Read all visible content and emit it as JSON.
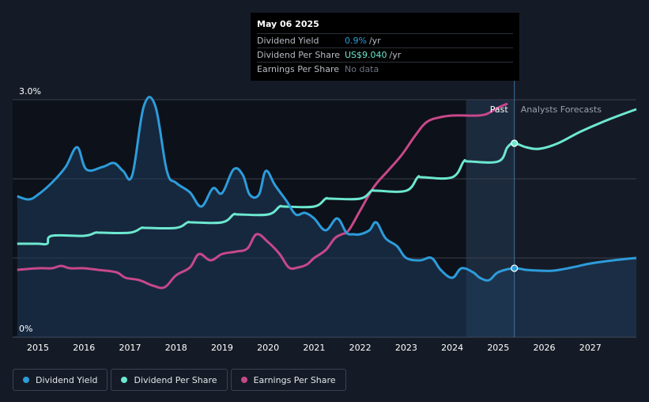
{
  "tooltip": {
    "date": "May 06 2025",
    "rows": [
      {
        "label": "Dividend Yield",
        "value": "0.9%",
        "unit": "/yr",
        "color": "#2d9cdb"
      },
      {
        "label": "Dividend Per Share",
        "value": "US$9.040",
        "unit": "/yr",
        "color": "#6de8d0"
      },
      {
        "label": "Earnings Per Share",
        "value": "No data",
        "unit": "",
        "color": "#6b7280"
      }
    ]
  },
  "legend": [
    {
      "label": "Dividend Yield",
      "color": "#2d9cdb"
    },
    {
      "label": "Dividend Per Share",
      "color": "#6de8d0"
    },
    {
      "label": "Earnings Per Share",
      "color": "#c7488a"
    }
  ],
  "chart_data": {
    "type": "line",
    "x_range": [
      2014.45,
      2028.0
    ],
    "y_range": [
      0,
      3.0
    ],
    "y_tick_labels": [
      {
        "value": 3.0,
        "label": "3.0%"
      },
      {
        "value": 0,
        "label": "0%"
      }
    ],
    "x_ticks": [
      2015,
      2016,
      2017,
      2018,
      2019,
      2020,
      2021,
      2022,
      2023,
      2024,
      2025,
      2026,
      2027
    ],
    "past_label": "Past",
    "forecast_label": "Analysts Forecasts",
    "forecast_band": [
      2024.3,
      2025.35
    ],
    "today": 2025.35,
    "colors": {
      "yield": "#2d9cdb",
      "dps": "#6de8d0",
      "eps": "#c7488a",
      "grid": "#3a3f4a",
      "background": "#151b26"
    },
    "series": [
      {
        "name": "Dividend Yield",
        "key": "yield",
        "x": [
          2014.55,
          2014.8,
          2015.0,
          2015.3,
          2015.6,
          2015.85,
          2016.05,
          2016.4,
          2016.65,
          2016.85,
          2017.05,
          2017.3,
          2017.55,
          2017.8,
          2018.0,
          2018.3,
          2018.55,
          2018.8,
          2019.0,
          2019.25,
          2019.45,
          2019.6,
          2019.8,
          2019.95,
          2020.15,
          2020.4,
          2020.6,
          2020.8,
          2021.0,
          2021.25,
          2021.5,
          2021.7,
          2021.85,
          2022.0,
          2022.2,
          2022.35,
          2022.55,
          2022.8,
          2023.0,
          2023.3,
          2023.55,
          2023.75,
          2024.0,
          2024.2,
          2024.45,
          2024.6,
          2024.8,
          2025.0,
          2025.35,
          2025.6,
          2025.9,
          2026.2,
          2026.6,
          2027.0,
          2027.5,
          2028.0
        ],
        "values": [
          1.78,
          1.74,
          1.8,
          1.95,
          2.15,
          2.4,
          2.12,
          2.15,
          2.2,
          2.1,
          2.05,
          2.92,
          2.92,
          2.1,
          1.95,
          1.83,
          1.65,
          1.88,
          1.82,
          2.12,
          2.05,
          1.8,
          1.8,
          2.1,
          1.92,
          1.72,
          1.55,
          1.57,
          1.5,
          1.35,
          1.5,
          1.32,
          1.3,
          1.3,
          1.35,
          1.45,
          1.25,
          1.15,
          1.0,
          0.97,
          1.0,
          0.85,
          0.75,
          0.87,
          0.82,
          0.75,
          0.72,
          0.82,
          0.87,
          0.85,
          0.84,
          0.84,
          0.88,
          0.93,
          0.97,
          1.0
        ]
      },
      {
        "name": "Dividend Per Share",
        "key": "dps",
        "x": [
          2014.55,
          2015.0,
          2015.2,
          2015.3,
          2016.0,
          2016.25,
          2016.35,
          2017.0,
          2017.25,
          2017.35,
          2018.0,
          2018.25,
          2018.35,
          2019.0,
          2019.25,
          2019.35,
          2020.0,
          2020.25,
          2020.35,
          2021.0,
          2021.25,
          2021.35,
          2022.0,
          2022.25,
          2022.35,
          2023.0,
          2023.25,
          2023.35,
          2024.0,
          2024.25,
          2024.35,
          2025.0,
          2025.2,
          2025.35,
          2025.6,
          2025.9,
          2026.3,
          2026.8,
          2027.4,
          2028.0
        ],
        "values": [
          1.18,
          1.18,
          1.18,
          1.28,
          1.28,
          1.32,
          1.32,
          1.32,
          1.38,
          1.38,
          1.38,
          1.45,
          1.45,
          1.45,
          1.55,
          1.55,
          1.55,
          1.65,
          1.65,
          1.65,
          1.75,
          1.75,
          1.75,
          1.85,
          1.85,
          1.85,
          2.02,
          2.02,
          2.02,
          2.22,
          2.22,
          2.22,
          2.4,
          2.45,
          2.4,
          2.38,
          2.45,
          2.6,
          2.75,
          2.88
        ]
      },
      {
        "name": "Earnings Per Share",
        "key": "eps",
        "x": [
          2014.55,
          2015.0,
          2015.3,
          2015.5,
          2015.7,
          2016.0,
          2016.3,
          2016.7,
          2016.9,
          2017.2,
          2017.5,
          2017.75,
          2018.0,
          2018.3,
          2018.5,
          2018.75,
          2019.0,
          2019.3,
          2019.55,
          2019.75,
          2020.0,
          2020.25,
          2020.45,
          2020.65,
          2020.85,
          2021.0,
          2021.25,
          2021.45,
          2021.6,
          2021.75,
          2022.0,
          2022.3,
          2022.6,
          2022.9,
          2023.2,
          2023.45,
          2023.75,
          2024.0,
          2024.3,
          2024.55,
          2024.75,
          2025.0,
          2025.2
        ],
        "values": [
          0.85,
          0.87,
          0.87,
          0.9,
          0.87,
          0.87,
          0.85,
          0.82,
          0.75,
          0.72,
          0.65,
          0.63,
          0.78,
          0.88,
          1.05,
          0.97,
          1.05,
          1.08,
          1.12,
          1.3,
          1.2,
          1.05,
          0.88,
          0.88,
          0.92,
          1.0,
          1.1,
          1.25,
          1.3,
          1.35,
          1.6,
          1.9,
          2.1,
          2.3,
          2.55,
          2.72,
          2.78,
          2.8,
          2.8,
          2.8,
          2.82,
          2.9,
          2.95
        ]
      }
    ]
  }
}
